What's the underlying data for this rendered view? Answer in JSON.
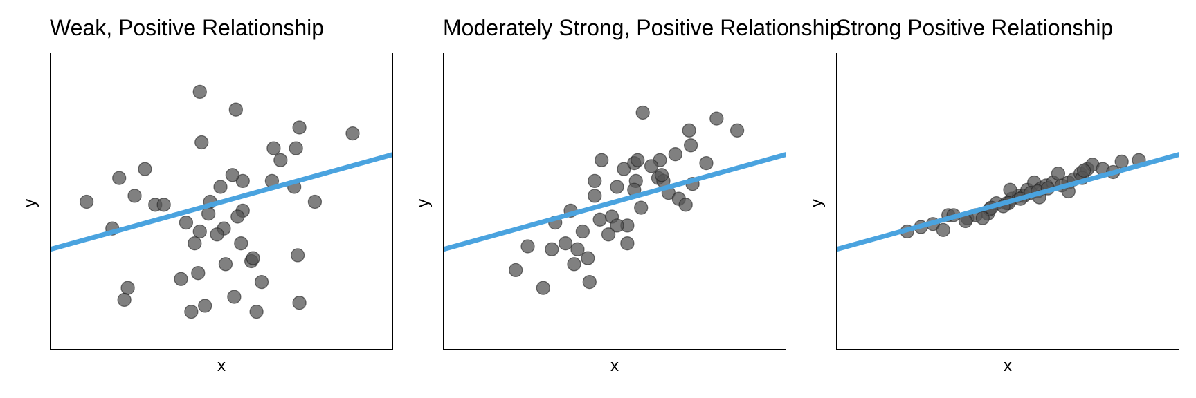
{
  "chart_data": [
    {
      "type": "scatter",
      "title": "Weak, Positive Relationship",
      "xlabel": "x",
      "ylabel": "y",
      "xlim": [
        0,
        10
      ],
      "ylim": [
        0,
        10
      ],
      "grid": false,
      "point_color": "#555555",
      "line_color": "#4aa3df",
      "trend_line": {
        "x": [
          0,
          10
        ],
        "y": [
          3.4,
          6.6
        ]
      },
      "series": [
        {
          "x": [
            2.0,
            2.75,
            2.45,
            1.05,
            3.05,
            1.8,
            4.3,
            4.65,
            4.6,
            5.05,
            4.85,
            5.85,
            6.15,
            6.0,
            5.35,
            4.1,
            4.5,
            7.2,
            8.8,
            4.95,
            5.6,
            6.45,
            6.7,
            7.15,
            7.25,
            6.5,
            4.4,
            4.35,
            5.4,
            5.6,
            5.3,
            7.1,
            7.7,
            5.1,
            4.35,
            3.95,
            3.3,
            2.25,
            2.15,
            7.25,
            3.8,
            5.45,
            5.55,
            5.9,
            4.2
          ],
          "y": [
            5.8,
            6.1,
            5.2,
            5.0,
            4.9,
            4.1,
            2.6,
            5.0,
            4.6,
            4.1,
            3.9,
            3.0,
            2.3,
            1.3,
            1.8,
            1.3,
            1.5,
            3.2,
            7.3,
            5.5,
            4.7,
            5.7,
            6.4,
            6.8,
            7.5,
            6.8,
            7.0,
            8.7,
            8.1,
            5.7,
            5.9,
            5.5,
            5.0,
            2.9,
            4.0,
            4.3,
            4.9,
            2.1,
            1.7,
            1.6,
            2.4,
            4.5,
            3.6,
            3.1,
            3.6
          ]
        }
      ]
    },
    {
      "type": "scatter",
      "title": "Moderately Strong, Positive Relationship",
      "xlabel": "x",
      "ylabel": "y",
      "xlim": [
        0,
        10
      ],
      "ylim": [
        0,
        10
      ],
      "grid": false,
      "point_color": "#555555",
      "line_color": "#4aa3df",
      "trend_line": {
        "x": [
          0,
          10
        ],
        "y": [
          3.4,
          6.6
        ]
      },
      "series": [
        {
          "x": [
            2.1,
            2.9,
            3.25,
            3.55,
            3.9,
            4.55,
            5.05,
            5.6,
            6.3,
            6.75,
            7.15,
            2.45,
            3.15,
            3.7,
            4.05,
            5.25,
            5.55,
            6.05,
            6.55,
            6.85,
            7.25,
            7.65,
            4.4,
            4.9,
            5.35,
            5.75,
            6.25,
            4.25,
            5.8,
            4.4,
            5.65,
            6.4,
            6.35,
            4.2,
            7.95,
            8.55,
            4.6,
            5.35,
            7.05,
            7.2,
            5.05,
            3.8,
            4.8,
            5.55
          ],
          "y": [
            2.7,
            2.1,
            4.3,
            3.6,
            3.4,
            4.4,
            5.5,
            5.7,
            6.4,
            6.6,
            7.4,
            3.5,
            3.4,
            4.7,
            4.0,
            6.1,
            6.3,
            6.2,
            5.3,
            5.1,
            5.6,
            6.3,
            5.2,
            4.5,
            4.2,
            4.8,
            5.8,
            2.3,
            8.0,
            5.7,
            6.4,
            5.7,
            5.9,
            3.1,
            7.8,
            7.4,
            6.4,
            3.6,
            4.9,
            6.9,
            4.2,
            2.9,
            3.9,
            5.4
          ]
        }
      ]
    },
    {
      "type": "scatter",
      "title": "Strong Positive Relationship",
      "xlabel": "x",
      "ylabel": "y",
      "xlim": [
        0,
        10
      ],
      "ylim": [
        0,
        10
      ],
      "grid": false,
      "point_color": "#555555",
      "line_color": "#4aa3df",
      "trend_line": {
        "x": [
          0,
          10
        ],
        "y": [
          3.4,
          6.6
        ]
      },
      "series": [
        {
          "x": [
            2.05,
            2.45,
            2.8,
            3.1,
            3.25,
            3.8,
            4.05,
            4.4,
            4.45,
            4.65,
            4.95,
            5.1,
            5.3,
            5.45,
            5.55,
            5.75,
            5.95,
            6.1,
            6.3,
            6.55,
            6.75,
            6.9,
            7.1,
            7.3,
            7.45,
            7.75,
            8.05,
            8.3,
            8.8,
            3.4,
            3.75,
            4.25,
            4.5,
            5.05,
            5.35,
            5.65,
            5.85,
            6.15,
            6.45,
            6.75,
            7.15,
            7.2,
            5.0,
            5.9,
            4.85
          ],
          "y": [
            4.0,
            4.15,
            4.25,
            4.05,
            4.55,
            4.45,
            4.55,
            4.6,
            4.75,
            4.95,
            4.95,
            5.1,
            5.2,
            5.2,
            5.4,
            5.65,
            5.45,
            5.55,
            5.65,
            5.55,
            5.65,
            5.75,
            5.95,
            6.1,
            6.25,
            6.1,
            6.0,
            6.35,
            6.4,
            4.55,
            4.35,
            4.45,
            4.8,
            5.4,
            5.1,
            5.3,
            5.35,
            5.45,
            5.95,
            5.35,
            5.8,
            6.05,
            4.95,
            5.15,
            4.85
          ]
        }
      ]
    }
  ]
}
